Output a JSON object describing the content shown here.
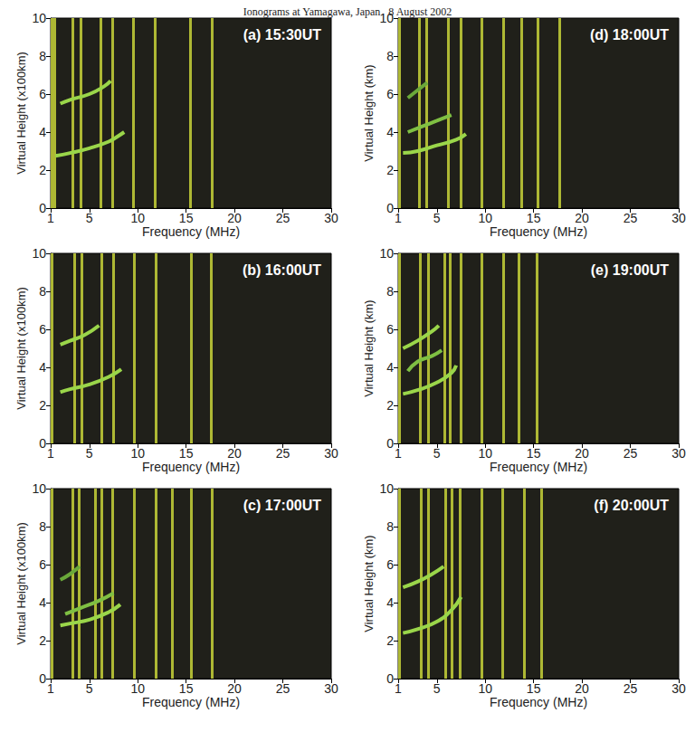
{
  "title": "Ionograms at Yamagawa, Japan   8 August 2002",
  "chart_data": [
    {
      "type": "line",
      "title": "(a) 15:30UT",
      "xlabel": "Frequency (MHz)",
      "ylabel": "Virtual Height (x100km)",
      "xlim": [
        1,
        30
      ],
      "xticks": [
        1,
        5,
        10,
        15,
        20,
        25,
        30
      ],
      "ylim": [
        0,
        10
      ],
      "yticks": [
        0,
        2,
        4,
        6,
        8,
        10
      ],
      "grid": false,
      "interference_lines": {
        "color": "#c8d43a",
        "x": [
          1.1,
          1.4,
          3.3,
          4.1,
          6.2,
          7.4,
          9.5,
          11.8,
          15.4,
          17.7
        ]
      },
      "series": [
        {
          "color": "#9ad64a",
          "x": [
            1.5,
            3,
            5,
            7,
            8,
            8.6
          ],
          "values": [
            2.75,
            2.9,
            3.15,
            3.5,
            3.8,
            4.0
          ]
        },
        {
          "color": "#9ad64a",
          "x": [
            2,
            3,
            5,
            6.5,
            7.2
          ],
          "values": [
            5.5,
            5.7,
            6.0,
            6.4,
            6.7
          ]
        }
      ]
    },
    {
      "type": "line",
      "title": "(b) 16:00UT",
      "xlabel": "Frequency (MHz)",
      "ylabel": "Virtual Height (x100km)",
      "xlim": [
        1,
        30
      ],
      "xticks": [
        1,
        5,
        10,
        15,
        20,
        25,
        30
      ],
      "ylim": [
        0,
        10
      ],
      "yticks": [
        0,
        2,
        4,
        6,
        8,
        10
      ],
      "grid": false,
      "interference_lines": {
        "color": "#c8d43a",
        "x": [
          1.1,
          3.5,
          4.2,
          6.3,
          7.5,
          9.6,
          11.9,
          15.5,
          17.6
        ]
      },
      "series": [
        {
          "color": "#9ad64a",
          "x": [
            2,
            3,
            5,
            7,
            8.3
          ],
          "values": [
            2.7,
            2.85,
            3.1,
            3.5,
            3.9
          ]
        },
        {
          "color": "#9ad64a",
          "x": [
            2,
            3,
            4.5,
            6
          ],
          "values": [
            5.2,
            5.4,
            5.7,
            6.2
          ]
        }
      ]
    },
    {
      "type": "line",
      "title": "(c) 17:00UT",
      "xlabel": "Frequency (MHz)",
      "ylabel": "Virtual Height (x100km)",
      "xlim": [
        1,
        30
      ],
      "xticks": [
        1,
        5,
        10,
        15,
        20,
        25,
        30
      ],
      "ylim": [
        0,
        10
      ],
      "yticks": [
        0,
        2,
        4,
        6,
        8,
        10
      ],
      "grid": false,
      "interference_lines": {
        "color": "#c8d43a",
        "x": [
          1.1,
          3.3,
          3.9,
          5.6,
          6.3,
          7.4,
          9.6,
          11.9,
          13.6,
          15.5,
          17.7
        ]
      },
      "series": [
        {
          "color": "#9ad64a",
          "x": [
            2,
            3,
            5,
            7,
            8.2
          ],
          "values": [
            2.8,
            2.9,
            3.1,
            3.5,
            3.9
          ]
        },
        {
          "color": "#7fc043",
          "x": [
            2.5,
            4,
            6,
            7.5
          ],
          "values": [
            3.4,
            3.7,
            4.1,
            4.5
          ]
        },
        {
          "color": "#6aa83a",
          "x": [
            2,
            3,
            4
          ],
          "values": [
            5.2,
            5.5,
            5.9
          ]
        }
      ]
    },
    {
      "type": "line",
      "title": "(d) 18:00UT",
      "xlabel": "Frequency (MHz)",
      "ylabel": "Virtual Height (km)",
      "xlim": [
        1,
        30
      ],
      "xticks": [
        1,
        5,
        10,
        15,
        20,
        25,
        30
      ],
      "ylim": [
        0,
        10
      ],
      "yticks": [
        0,
        2,
        4,
        6,
        8,
        10
      ],
      "grid": false,
      "interference_lines": {
        "color": "#c8d43a",
        "x": [
          1.1,
          3.2,
          3.9,
          6.2,
          7.5,
          9.6,
          11.9,
          13.7,
          15.4,
          17.7
        ]
      },
      "series": [
        {
          "color": "#9ad64a",
          "x": [
            1.5,
            3,
            5,
            7,
            8
          ],
          "values": [
            2.9,
            3.0,
            3.3,
            3.6,
            3.9
          ]
        },
        {
          "color": "#7fc043",
          "x": [
            2,
            3.5,
            5,
            6.5
          ],
          "values": [
            4.0,
            4.3,
            4.6,
            4.9
          ]
        },
        {
          "color": "#6aa83a",
          "x": [
            2,
            3,
            4
          ],
          "values": [
            5.8,
            6.2,
            6.6
          ]
        }
      ]
    },
    {
      "type": "line",
      "title": "(e) 19:00UT",
      "xlabel": "Frequency (MHz)",
      "ylabel": "Virtual Height (km)",
      "xlim": [
        1,
        30
      ],
      "xticks": [
        1,
        5,
        10,
        15,
        20,
        25,
        30
      ],
      "ylim": [
        0,
        10
      ],
      "yticks": [
        0,
        2,
        4,
        6,
        8,
        10
      ],
      "grid": false,
      "interference_lines": {
        "color": "#c8d43a",
        "x": [
          1.1,
          3.3,
          4.1,
          5.8,
          6.4,
          7.5,
          9.6,
          11.9,
          13.5,
          15.3
        ]
      },
      "series": [
        {
          "color": "#9ad64a",
          "x": [
            1.5,
            3,
            5,
            6.5,
            7
          ],
          "values": [
            2.6,
            2.8,
            3.2,
            3.7,
            4.1
          ]
        },
        {
          "color": "#7fc043",
          "x": [
            2,
            3,
            4.5,
            5.5
          ],
          "values": [
            3.8,
            4.3,
            4.6,
            4.9
          ]
        },
        {
          "color": "#9ad64a",
          "x": [
            1.5,
            3,
            4.5,
            5.2
          ],
          "values": [
            5.0,
            5.4,
            5.9,
            6.2
          ]
        }
      ]
    },
    {
      "type": "line",
      "title": "(f) 20:00UT",
      "xlabel": "Frequency (MHz)",
      "ylabel": "Virtual Height (km)",
      "xlim": [
        1,
        30
      ],
      "xticks": [
        1,
        5,
        10,
        15,
        20,
        25,
        30
      ],
      "ylim": [
        0,
        10
      ],
      "yticks": [
        0,
        2,
        4,
        6,
        8,
        10
      ],
      "grid": false,
      "interference_lines": {
        "color": "#c8d43a",
        "x": [
          1.1,
          3.4,
          4.1,
          5.9,
          6.5,
          7.4,
          9.6,
          11.8,
          14.0,
          15.8
        ]
      },
      "series": [
        {
          "color": "#9ad64a",
          "x": [
            1.5,
            3,
            5,
            6.5,
            7.5
          ],
          "values": [
            2.4,
            2.6,
            3.0,
            3.6,
            4.3
          ]
        },
        {
          "color": "#9ad64a",
          "x": [
            1.5,
            3,
            4.5,
            5.7
          ],
          "values": [
            4.8,
            5.1,
            5.5,
            5.9
          ]
        }
      ]
    }
  ]
}
